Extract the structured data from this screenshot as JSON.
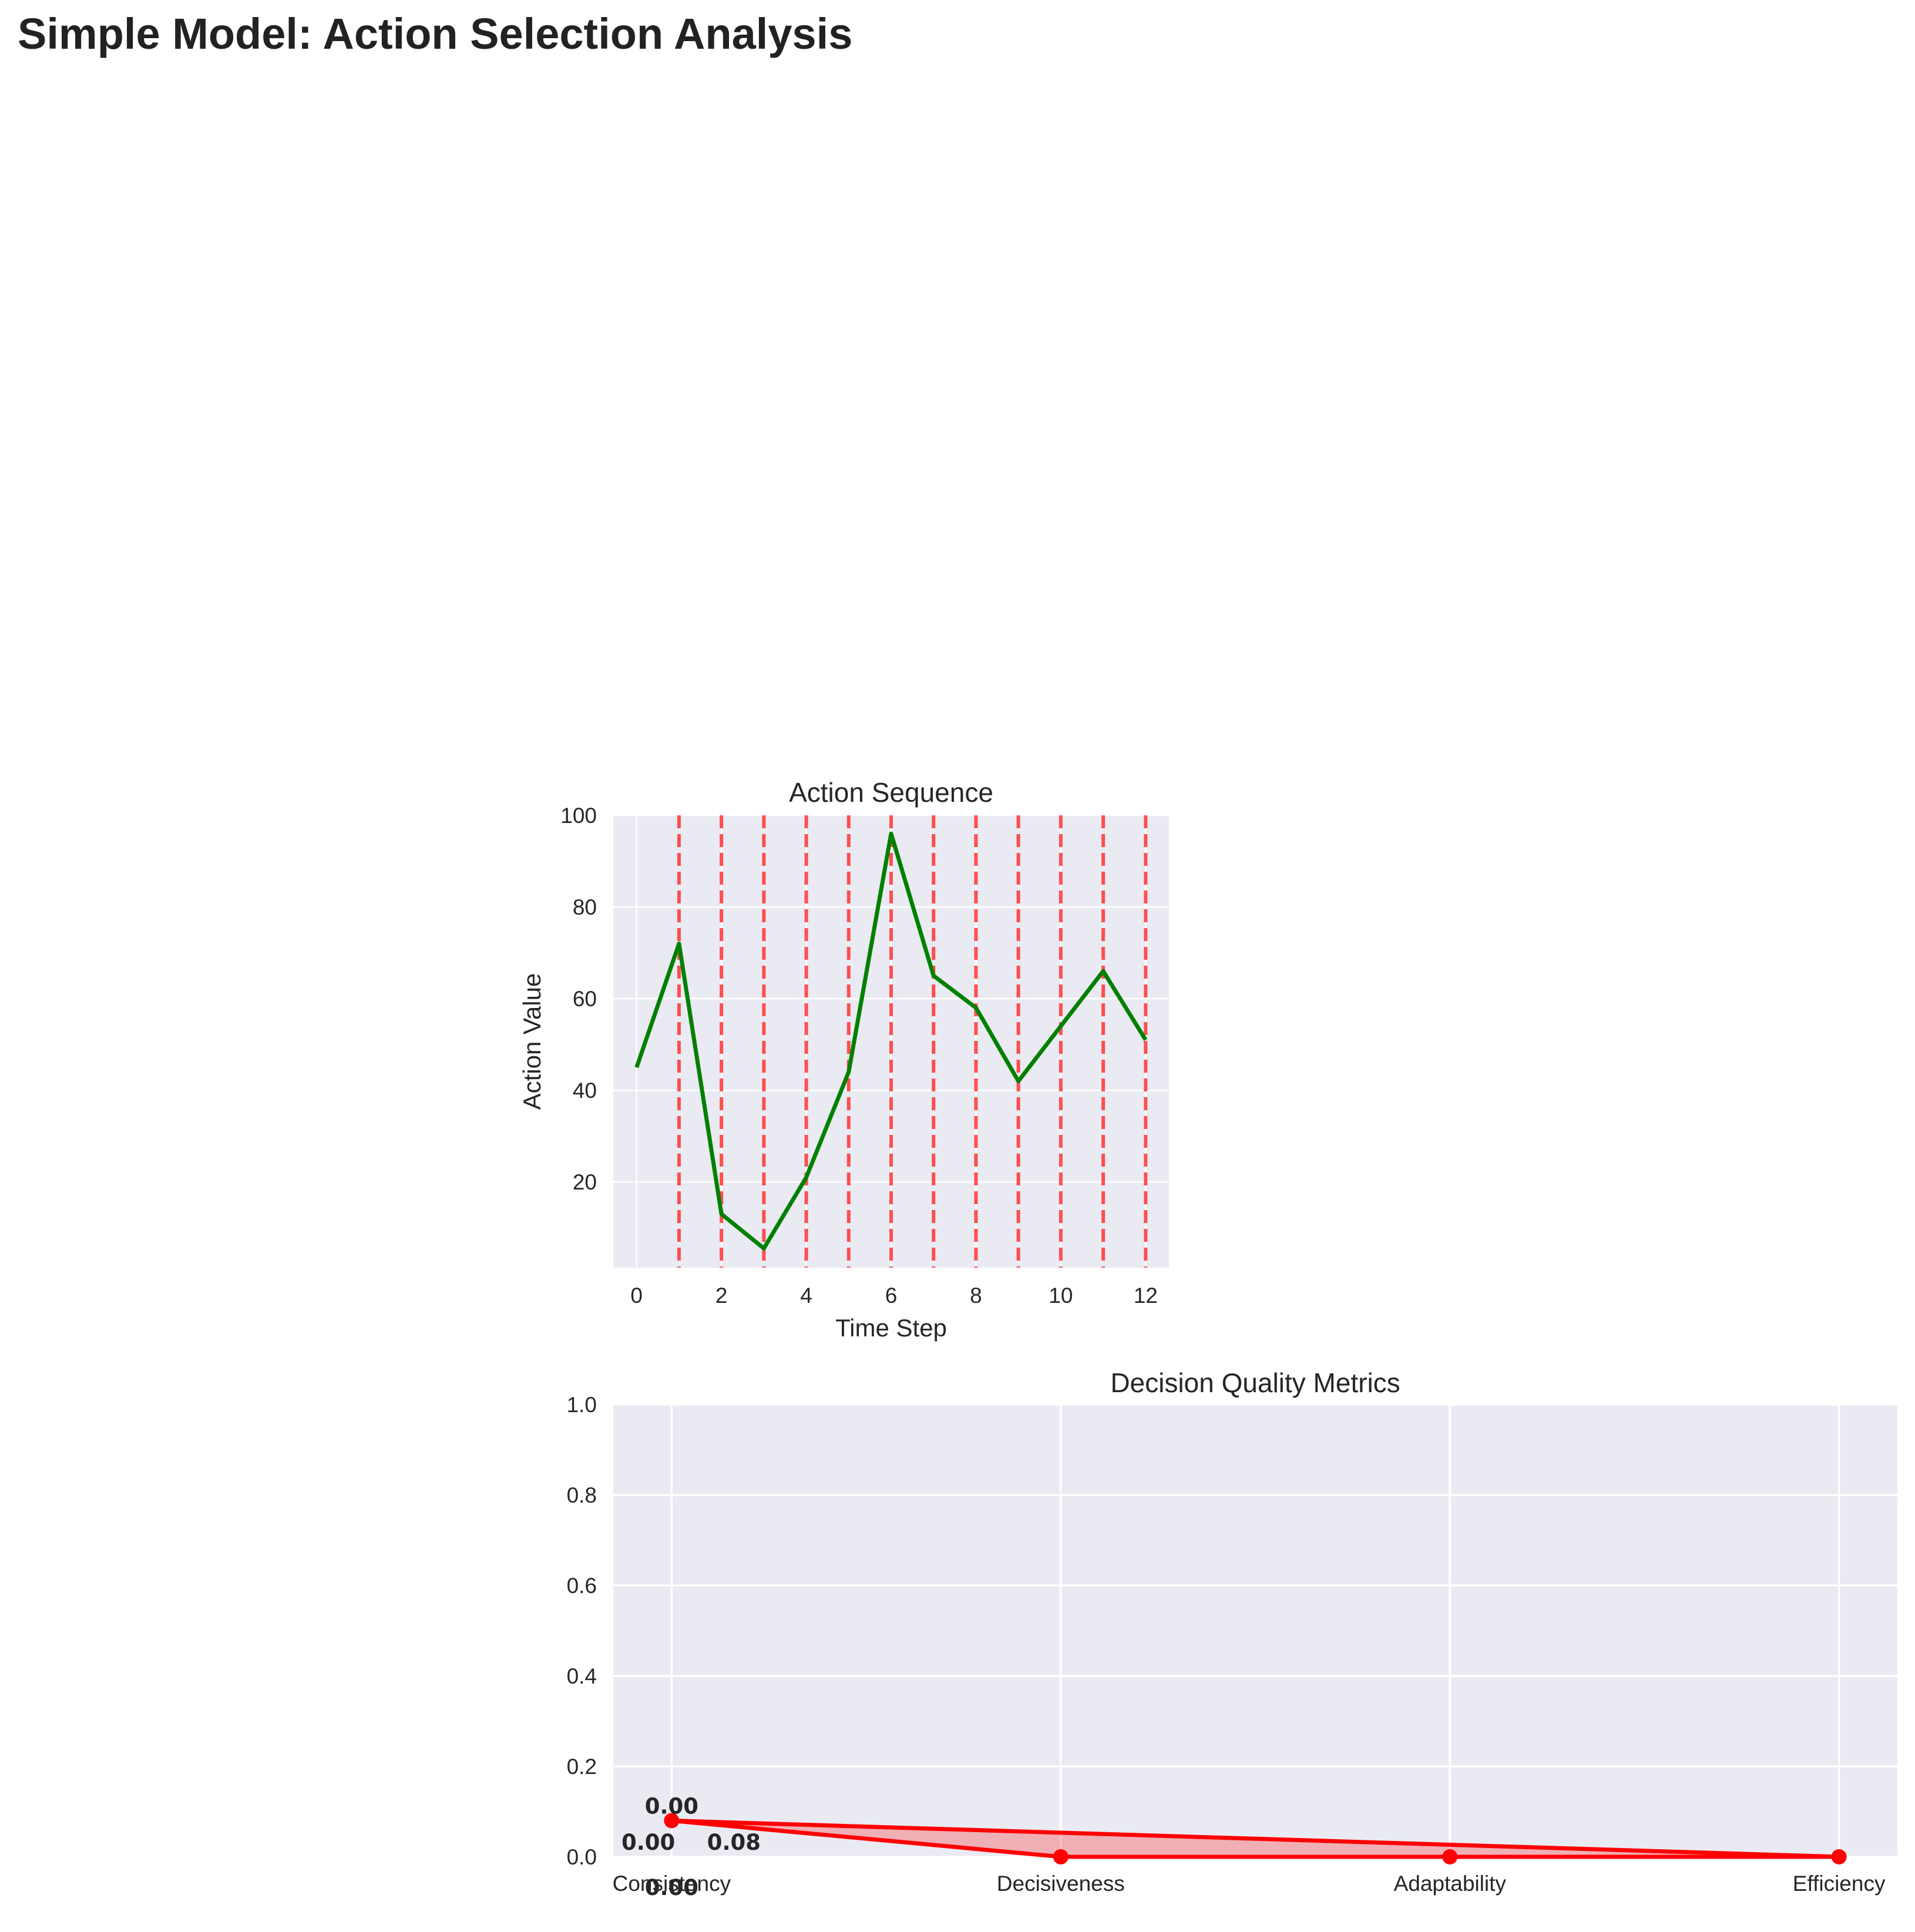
{
  "title": "Simple Model: Action Selection Analysis",
  "chart_data": [
    {
      "type": "line",
      "title": "Action Sequence",
      "xlabel": "Time Step",
      "ylabel": "Action Value",
      "x": [
        0,
        1,
        2,
        3,
        4,
        5,
        6,
        7,
        8,
        9,
        10,
        11,
        12
      ],
      "series": [
        {
          "values": [
            45,
            72,
            13,
            5.5,
            21,
            44,
            96,
            65,
            58,
            42,
            54,
            66,
            51
          ],
          "color": "#008000"
        }
      ],
      "vertical_markers": {
        "x": [
          1,
          2,
          3,
          4,
          5,
          6,
          7,
          8,
          9,
          10,
          11,
          12
        ],
        "color": "#ff3333",
        "style": "dashed"
      },
      "xticks": [
        "0",
        "2",
        "4",
        "6",
        "8",
        "10",
        "12"
      ],
      "yticks": [
        "20",
        "40",
        "60",
        "80",
        "100"
      ],
      "xlim": [
        -0.55,
        12.55
      ],
      "ylim": [
        1.3,
        100
      ],
      "grid": true,
      "background": "#eaeaf2"
    },
    {
      "type": "line",
      "title": "Decision Quality Metrics",
      "xlabel": "",
      "ylabel": "",
      "categories": [
        "Consistency",
        "Decisiveness",
        "Adaptability",
        "Efficiency"
      ],
      "series": [
        {
          "values": [
            0.08,
            0.0,
            0.0,
            0.0
          ],
          "color": "#ff0000",
          "fill": "#ff0000"
        }
      ],
      "value_labels": [
        {
          "text": "0.00",
          "x": 0.0,
          "y": 0.08
        },
        {
          "text": "0.00",
          "x": -0.06,
          "y": 0.0
        },
        {
          "text": "0.08",
          "x": 0.16,
          "y": 0.0
        },
        {
          "text": "0.00",
          "x": 0.0,
          "y": -0.1
        }
      ],
      "yticks": [
        "0.0",
        "0.2",
        "0.4",
        "0.6",
        "0.8",
        "1.0"
      ],
      "xlim": [
        -0.15,
        3.15
      ],
      "ylim": [
        0,
        1
      ],
      "grid": true,
      "background": "#eaeaf2"
    }
  ]
}
